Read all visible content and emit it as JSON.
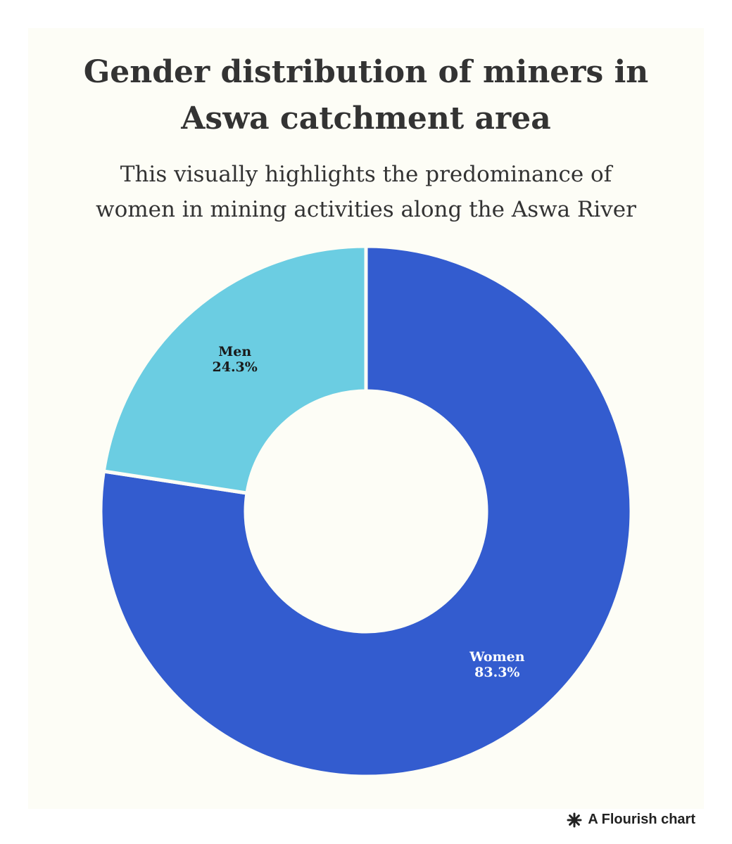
{
  "chart_data": {
    "type": "pie",
    "title": "Gender distribution of miners in Aswa catchment area",
    "title_lines": [
      "Gender distribution of miners in",
      "Aswa catchment area"
    ],
    "subtitle": "This visually highlights the predominance of women in mining activities along the Aswa River",
    "subtitle_lines": [
      "This visually highlights the predominance of",
      "women in mining activities along the Aswa River"
    ],
    "donut": true,
    "slices": [
      {
        "name": "Men",
        "value": 24.3,
        "label": "24.3%",
        "color": "#6bcde2",
        "label_color": "#1a1a1a"
      },
      {
        "name": "Women",
        "value": 83.3,
        "label": "83.3%",
        "color": "#335ccf",
        "label_color": "#ffffff"
      }
    ],
    "legend": "none"
  },
  "footer": {
    "text": "A Flourish chart",
    "icon": "flourish-asterisk-icon"
  },
  "colors": {
    "background": "#fdfdf6",
    "text": "#333333"
  }
}
